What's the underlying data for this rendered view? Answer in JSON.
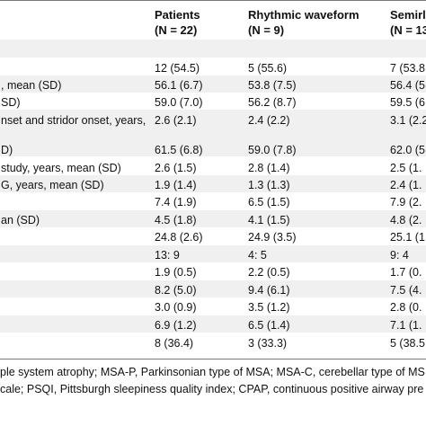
{
  "headers": [
    {
      "title": "Patients",
      "sub": "(N = 22)"
    },
    {
      "title": "Rhythmic waveform",
      "sub": "(N = 9)"
    },
    {
      "title": "Semirl",
      "sub": "(N = 13"
    }
  ],
  "rows": [
    {
      "label": "",
      "values": [
        "",
        "",
        ""
      ]
    },
    {
      "label": "",
      "values": [
        "12 (54.5)",
        "5 (55.6)",
        "7 (53.8"
      ]
    },
    {
      "label": ", mean (SD)",
      "values": [
        "56.1 (6.7)",
        "53.8 (7.5)",
        "56.4 (5"
      ]
    },
    {
      "label": "SD)",
      "values": [
        "59.0 (7.0)",
        "56.2 (8.7)",
        "59.5 (6"
      ]
    },
    {
      "label": "nset and stridor onset, years,",
      "values": [
        "2.6 (2.1)",
        "2.4 (2.2)",
        "3.1 (2.2"
      ]
    },
    {
      "label": "D)",
      "values": [
        "61.5 (6.8)",
        "59.0 (7.8)",
        "62.0 (5"
      ]
    },
    {
      "label": "study, years, mean (SD)",
      "values": [
        "2.6 (1.5)",
        "2.8 (1.4)",
        "2.5 (1."
      ]
    },
    {
      "label": "G, years, mean (SD)",
      "values": [
        "1.9 (1.4)",
        "1.3 (1.3)",
        "2.4 (1."
      ]
    },
    {
      "label": "",
      "values": [
        "7.4 (1.9)",
        "6.5 (1.5)",
        "7.9 (2."
      ]
    },
    {
      "label": "an (SD)",
      "values": [
        "4.5 (1.8)",
        "4.1 (1.5)",
        "4.8 (2."
      ]
    },
    {
      "label": "",
      "values": [
        "24.8 (2.6)",
        "24.9 (3.5)",
        "25.1 (1"
      ]
    },
    {
      "label": "",
      "values": [
        "13: 9",
        "4: 5",
        "9: 4"
      ]
    },
    {
      "label": "",
      "values": [
        "1.9 (0.5)",
        "2.2 (0.5)",
        "1.7 (0."
      ]
    },
    {
      "label": "",
      "values": [
        "8.2 (5.0)",
        "9.4 (6.1)",
        "7.5 (4."
      ]
    },
    {
      "label": "",
      "values": [
        "3.0 (0.9)",
        "3.5 (1.2)",
        "2.8 (0."
      ]
    },
    {
      "label": "",
      "values": [
        "6.9 (1.2)",
        "6.5 (1.4)",
        "7.1 (1."
      ]
    },
    {
      "label": "",
      "values": [
        "8 (36.4)",
        "3 (33.3)",
        "5 (38.5"
      ]
    }
  ],
  "footnotes": [
    "ple system atrophy; MSA-P, Parkinsonian type of MSA; MSA-C, cerebellar type of MS",
    "cale; PSQI, Pittsburgh sleepiness quality index; CPAP, continuous positive airway pre"
  ]
}
